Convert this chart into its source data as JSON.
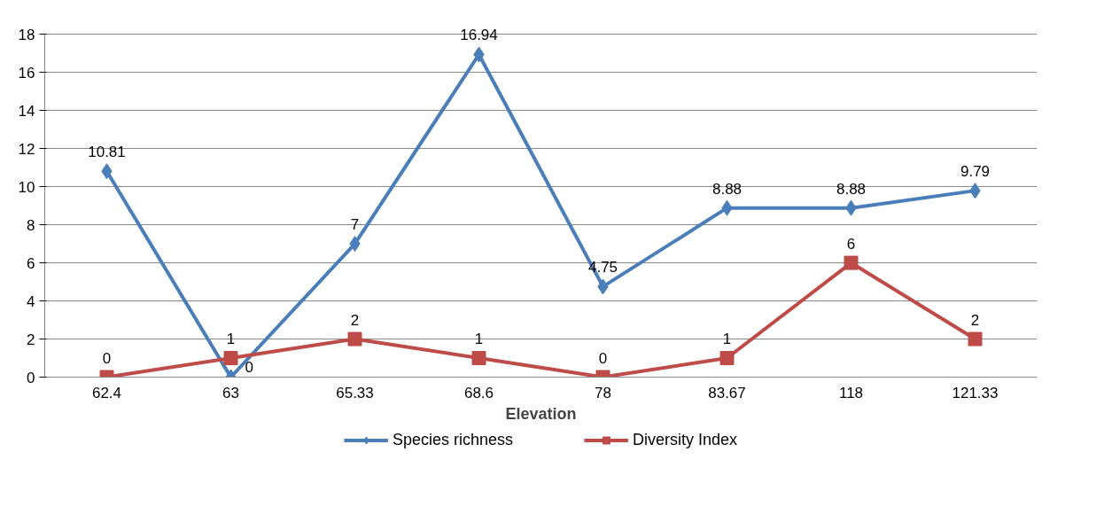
{
  "chart_data": {
    "type": "line",
    "xlabel": "Elevation",
    "categories": [
      "62.4",
      "63",
      "65.33",
      "68.6",
      "78",
      "83.67",
      "118",
      "121.33"
    ],
    "series": [
      {
        "name": "Species richness",
        "color": "#4a7ebb",
        "marker": "diamond",
        "values": [
          10.81,
          0,
          7,
          16.94,
          4.75,
          8.88,
          8.88,
          9.79
        ]
      },
      {
        "name": "Diversity Index",
        "color": "#be4b48",
        "marker": "square",
        "values": [
          0,
          1,
          2,
          1,
          0,
          1,
          6,
          2
        ]
      }
    ],
    "ylim": [
      0,
      18
    ],
    "yticks": [
      0,
      2,
      4,
      6,
      8,
      10,
      12,
      14,
      16,
      18
    ],
    "grid": "y",
    "legend": "bottom",
    "data_labels": true,
    "line_style": "solid"
  }
}
